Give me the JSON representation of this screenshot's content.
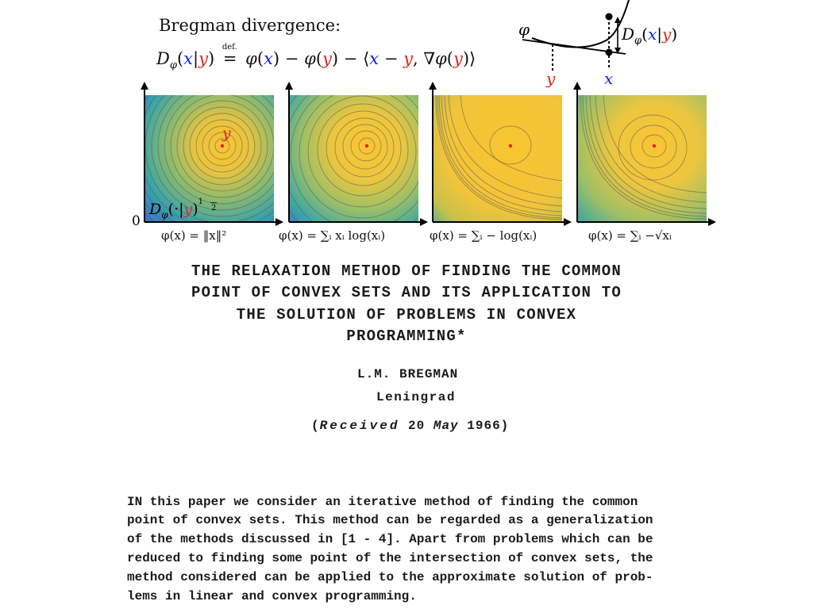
{
  "header": {
    "heading": "Bregman divergence:",
    "formula": {
      "D": "D",
      "phi": "φ",
      "x": "x",
      "bar": "|",
      "y": "y",
      "defeq_label": "def.",
      "eq": "=",
      "minus": "−",
      "lang": "⟨",
      "rang": "⟩",
      "comma": ",",
      "nabla": "∇",
      "lp": "(",
      "rp": ")"
    }
  },
  "inset": {
    "phi_label": "φ",
    "y_label": "y",
    "x_label": "x",
    "D_label": "D",
    "phi_sub": "φ",
    "lp": "(",
    "x": "x",
    "bar": "|",
    "y": "y",
    "rp": ")"
  },
  "panels": {
    "origin_label": "0",
    "y_point_label": "y",
    "overlay": {
      "D": "D",
      "phi": "φ",
      "lp": "(",
      "dot": "·",
      "bar": "|",
      "y": "y",
      "rp": ")",
      "exp_num": "1",
      "exp_den": "2"
    },
    "captions": [
      "φ(x) = ‖x‖²",
      "φ(x) = ∑ᵢ xᵢ log(xᵢ)",
      "φ(x) = ∑ᵢ − log(xᵢ)",
      "φ(x) = ∑ᵢ −√xᵢ"
    ]
  },
  "paper": {
    "title_lines": [
      "THE RELAXATION METHOD OF FINDING THE COMMON",
      "POINT OF CONVEX SETS AND ITS APPLICATION TO",
      "THE SOLUTION OF PROBLEMS IN CONVEX",
      "PROGRAMMING*"
    ],
    "author": "L.M. BREGMAN",
    "location": "Leningrad",
    "received_open": "(",
    "received_word": "Received",
    "received_day": "20",
    "received_month": "May",
    "received_year": "1966",
    "received_close": ")",
    "body_lines": [
      "IN this paper we consider an iterative method of finding the common",
      "point of convex sets. This method can be regarded as a generalization",
      "of the methods discussed in [1 - 4]. Apart from problems which can be",
      "reduced to finding some point of the intersection of convex sets, the",
      "method considered can be applied to the approximate solution of prob-",
      "lems in linear and convex programming."
    ]
  },
  "colors": {
    "blue": "#1a22d6",
    "red": "#e0261f",
    "center_yellow": "#f7c531",
    "outer_blue": "#3f7fd6"
  }
}
